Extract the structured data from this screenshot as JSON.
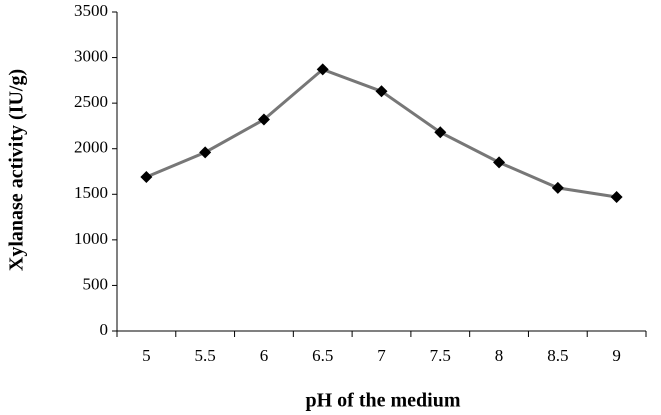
{
  "chart_data": {
    "type": "line",
    "x_label": "pH of the medium",
    "y_label": "Xylanase activity (IU/g)",
    "categories": [
      "5",
      "5.5",
      "6",
      "6.5",
      "7",
      "7.5",
      "8",
      "8.5",
      "9"
    ],
    "series": [
      {
        "color": "#777777",
        "values": [
          1690,
          1960,
          2320,
          2870,
          2630,
          2180,
          1850,
          1570,
          1470
        ]
      }
    ],
    "ylim": [
      0,
      3500
    ],
    "yticks": [
      0,
      500,
      1000,
      1500,
      2000,
      2500,
      3000,
      3500
    ],
    "grid": false
  }
}
